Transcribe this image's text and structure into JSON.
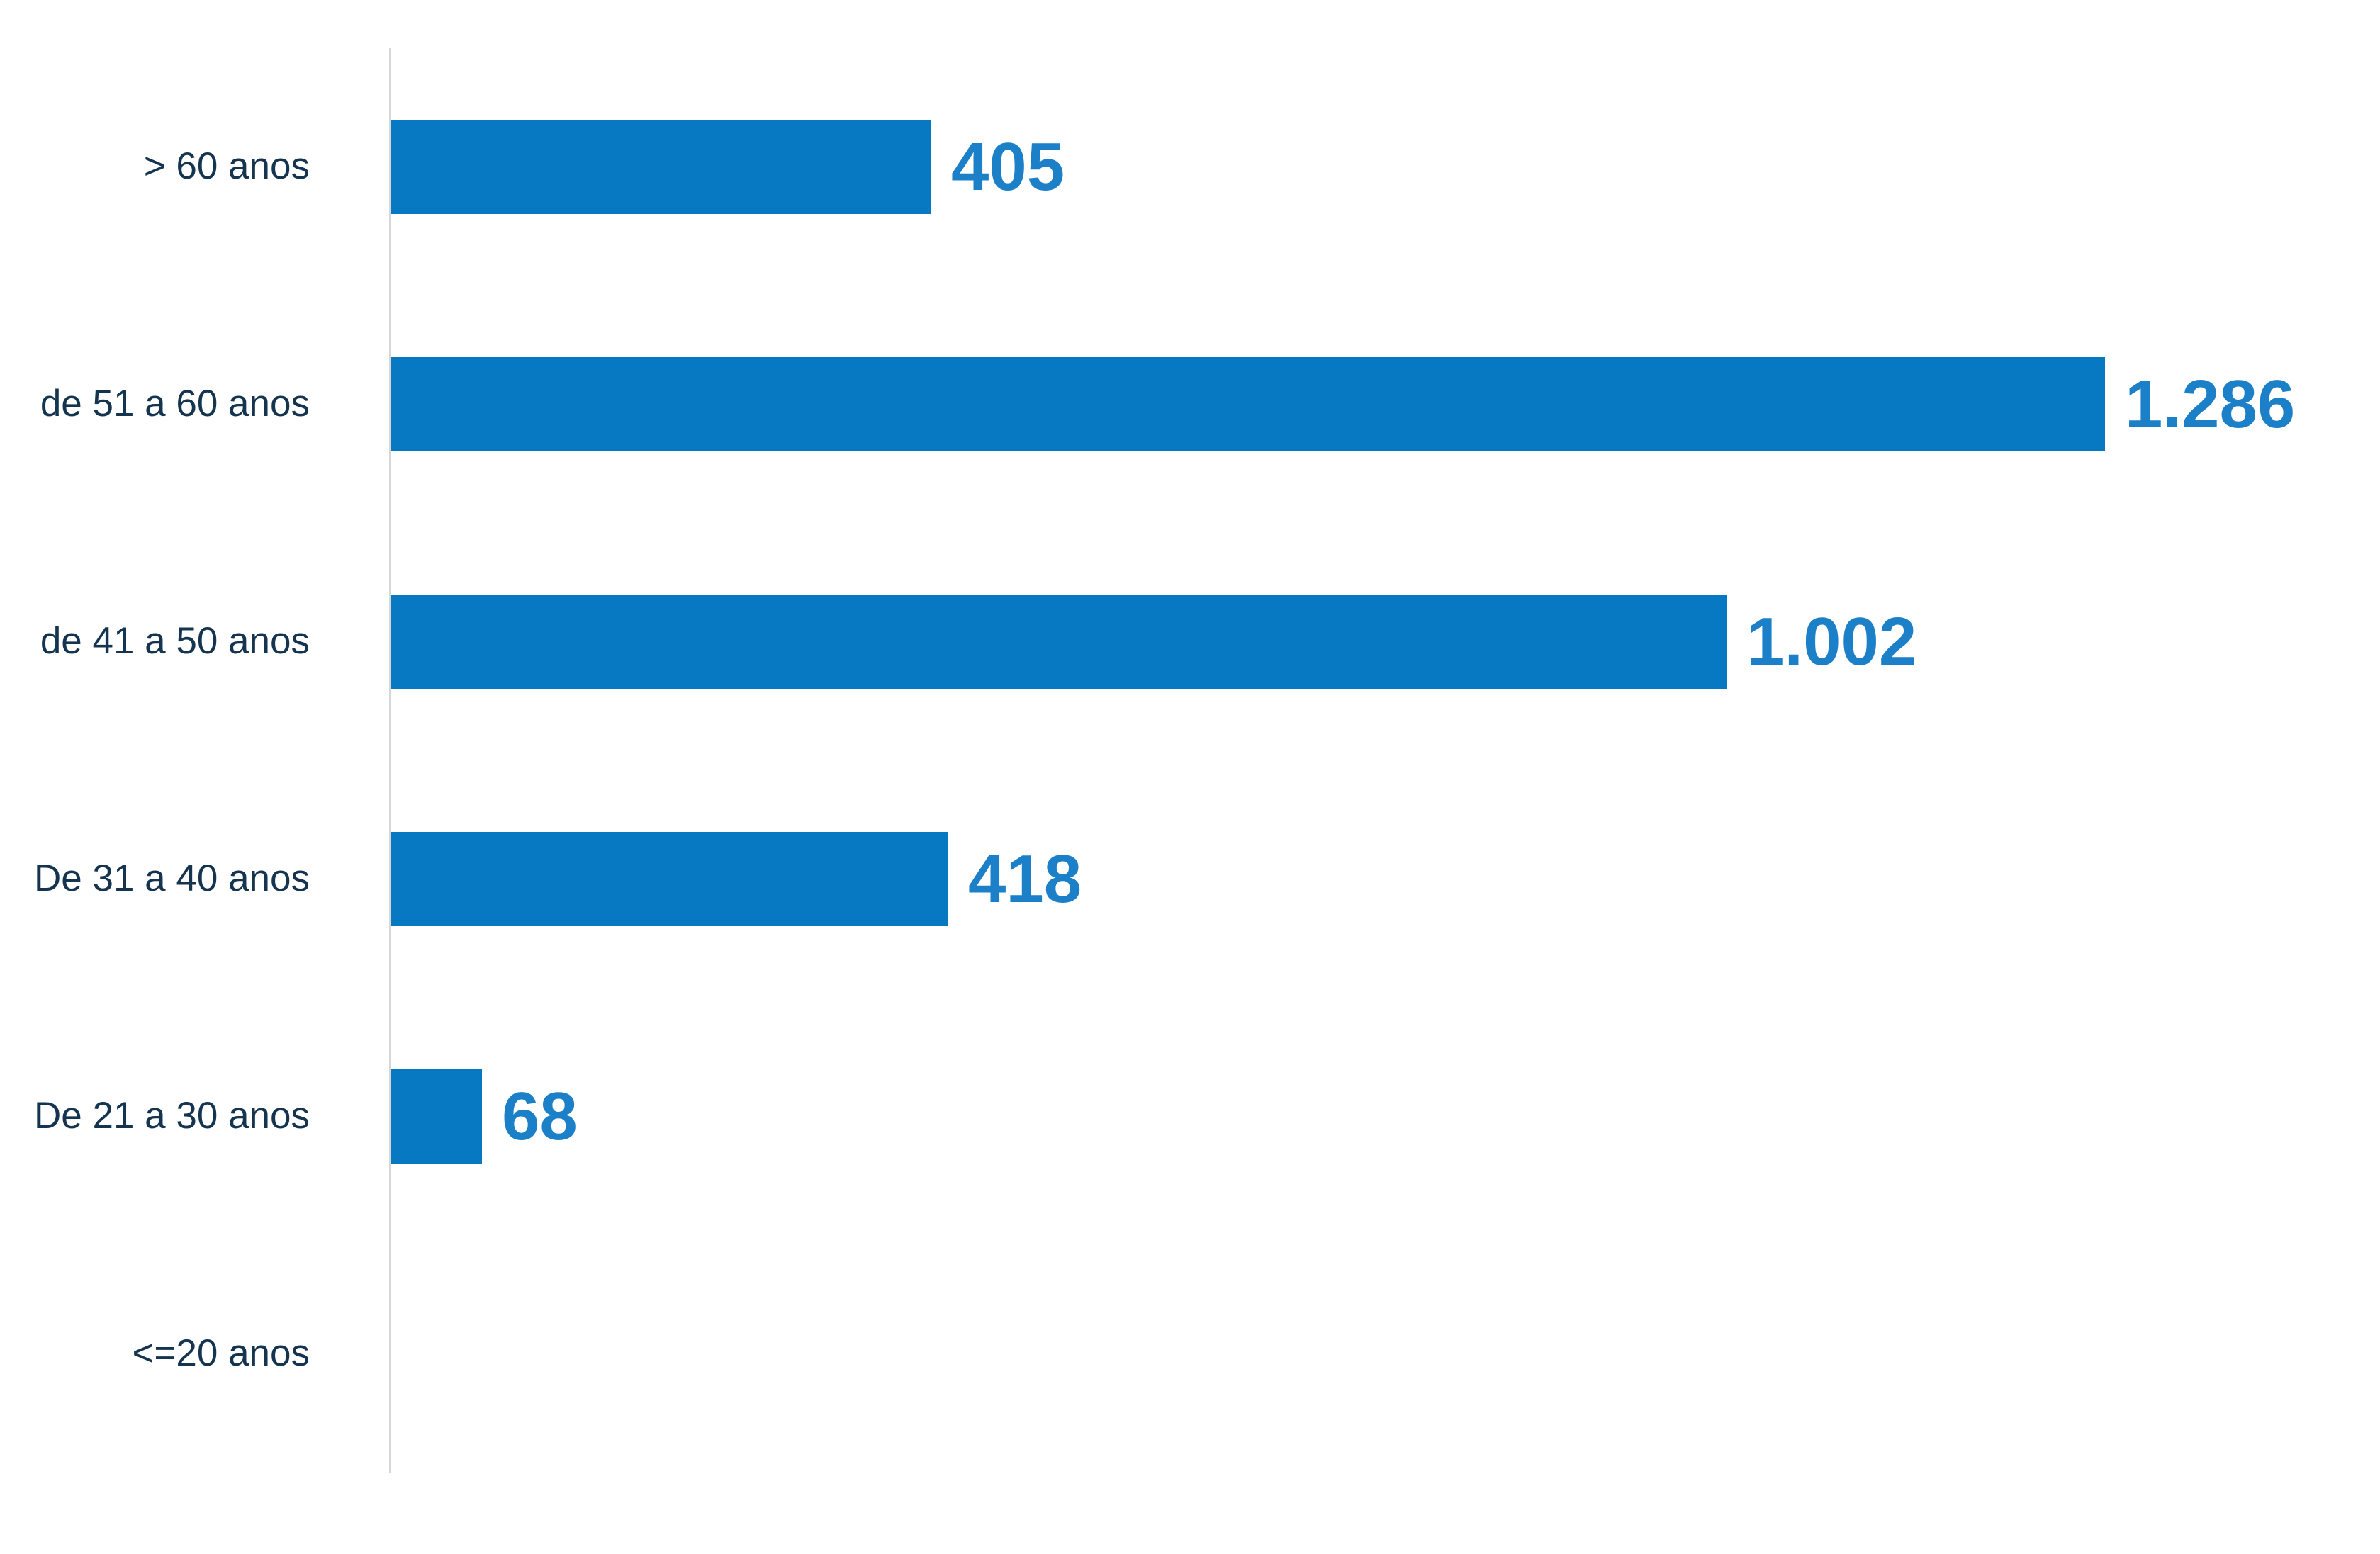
{
  "chart_data": {
    "type": "bar",
    "orientation": "horizontal",
    "title": "",
    "xlabel": "",
    "ylabel": "",
    "categories": [
      "> 60 anos",
      "de 51 a 60 anos",
      "de 41 a 50 anos",
      "De 31 a 40 anos",
      "De 21 a 30 anos",
      "<=20 anos"
    ],
    "values": [
      405,
      1286,
      1002,
      418,
      68,
      0
    ],
    "value_labels": [
      "405",
      "1.286",
      "1.002",
      "418",
      "68",
      ""
    ],
    "xlim": [
      0,
      1490
    ],
    "grid": false,
    "legend": false,
    "bar_color": "#0778c2",
    "value_label_color": "#1c80c8",
    "category_label_color": "#14344f",
    "axis_line_color": "#d7d7d7",
    "background_color": "#ffffff"
  }
}
